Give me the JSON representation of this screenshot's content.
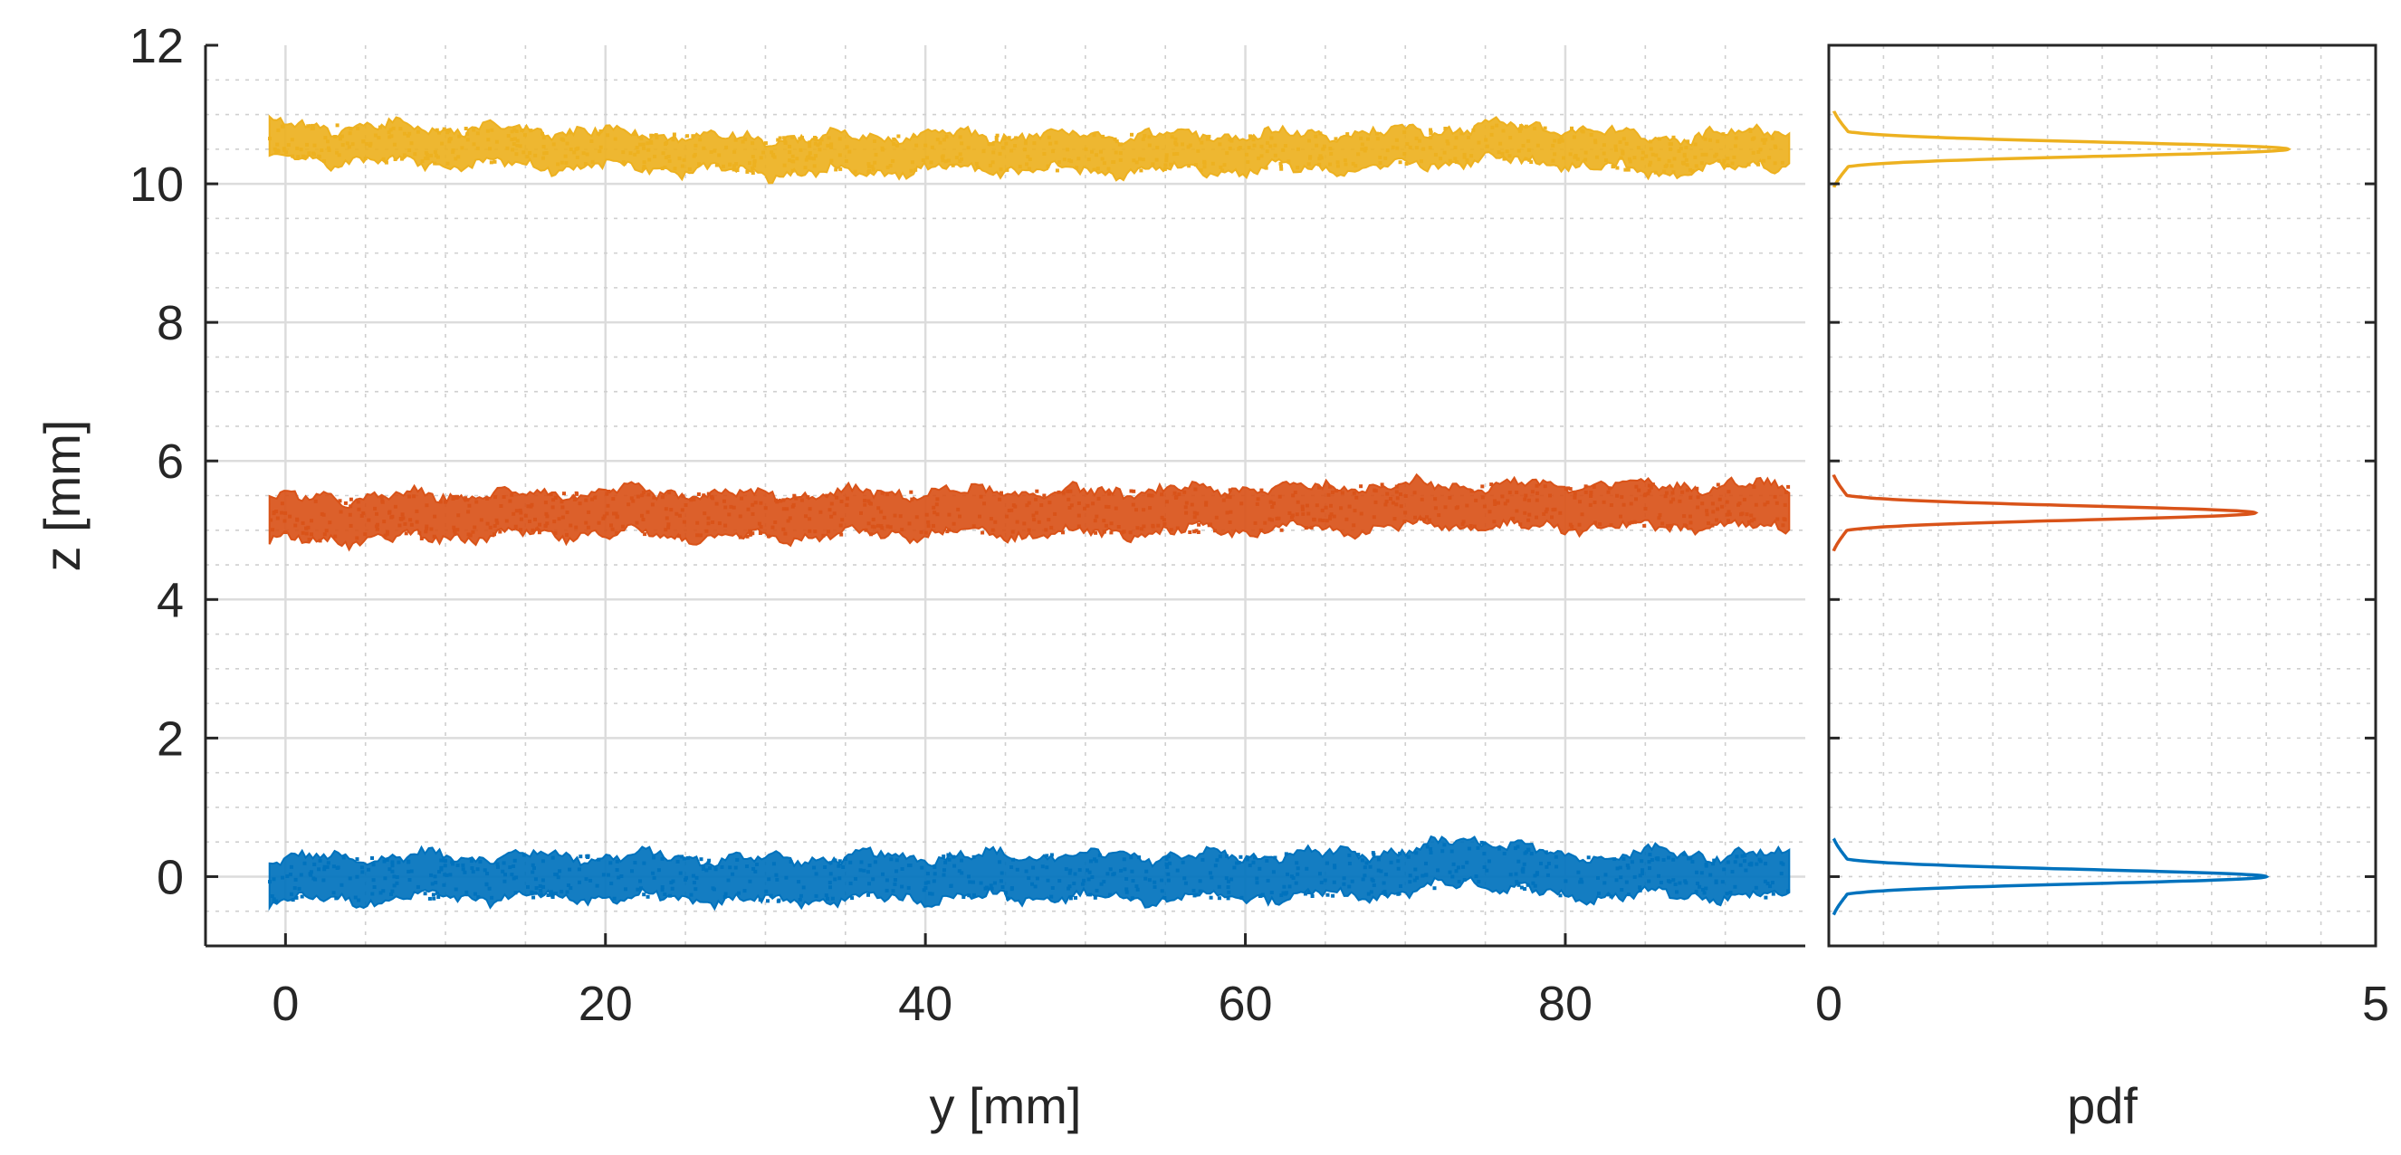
{
  "chart_data": [
    {
      "type": "scatter",
      "name": "main-panel",
      "xlabel": "y [mm]",
      "ylabel": "z [mm]",
      "xlim": [
        -5,
        95
      ],
      "ylim": [
        -1,
        12
      ],
      "xticks": [
        0,
        20,
        40,
        60,
        80
      ],
      "yticks": [
        0,
        2,
        4,
        6,
        8,
        10,
        12
      ],
      "grid": true,
      "minor_grid": true,
      "series": [
        {
          "color": "#0072BD",
          "x_range": [
            -1,
            94
          ],
          "centerline": {
            "y": [
              0,
              10,
              20,
              30,
              40,
              50,
              60,
              70,
              74,
              80,
              86,
              94
            ],
            "z": [
              -0.05,
              0.0,
              0.0,
              -0.05,
              0.0,
              0.0,
              0.0,
              0.05,
              0.25,
              0.0,
              0.05,
              0.0
            ]
          },
          "band_halfwidth": 0.3
        },
        {
          "color": "#D95319",
          "x_range": [
            -1,
            94
          ],
          "centerline": {
            "y": [
              0,
              10,
              20,
              30,
              40,
              50,
              60,
              70,
              80,
              94
            ],
            "z": [
              5.15,
              5.2,
              5.25,
              5.2,
              5.25,
              5.25,
              5.3,
              5.35,
              5.35,
              5.35
            ]
          },
          "band_halfwidth": 0.3
        },
        {
          "color": "#EDB120",
          "x_range": [
            -1,
            94
          ],
          "centerline": {
            "y": [
              0,
              10,
              20,
              30,
              40,
              50,
              60,
              70,
              75,
              80,
              86,
              94
            ],
            "z": [
              10.6,
              10.55,
              10.5,
              10.4,
              10.45,
              10.45,
              10.45,
              10.5,
              10.6,
              10.55,
              10.4,
              10.55
            ]
          },
          "band_halfwidth": 0.25
        }
      ]
    },
    {
      "type": "line",
      "name": "pdf-panel",
      "xlabel": "pdf",
      "ylabel": "",
      "xlim": [
        0,
        5
      ],
      "ylim": [
        -1,
        12
      ],
      "xtick_labels": [
        "0",
        "5"
      ],
      "grid": true,
      "minor_grid": true,
      "series": [
        {
          "color": "#0072BD",
          "mu": 0.0,
          "sigma": 0.1,
          "peak": 4.0
        },
        {
          "color": "#D95319",
          "mu": 5.25,
          "sigma": 0.1,
          "peak": 3.9
        },
        {
          "color": "#EDB120",
          "mu": 10.5,
          "sigma": 0.1,
          "peak": 4.2
        }
      ]
    }
  ]
}
